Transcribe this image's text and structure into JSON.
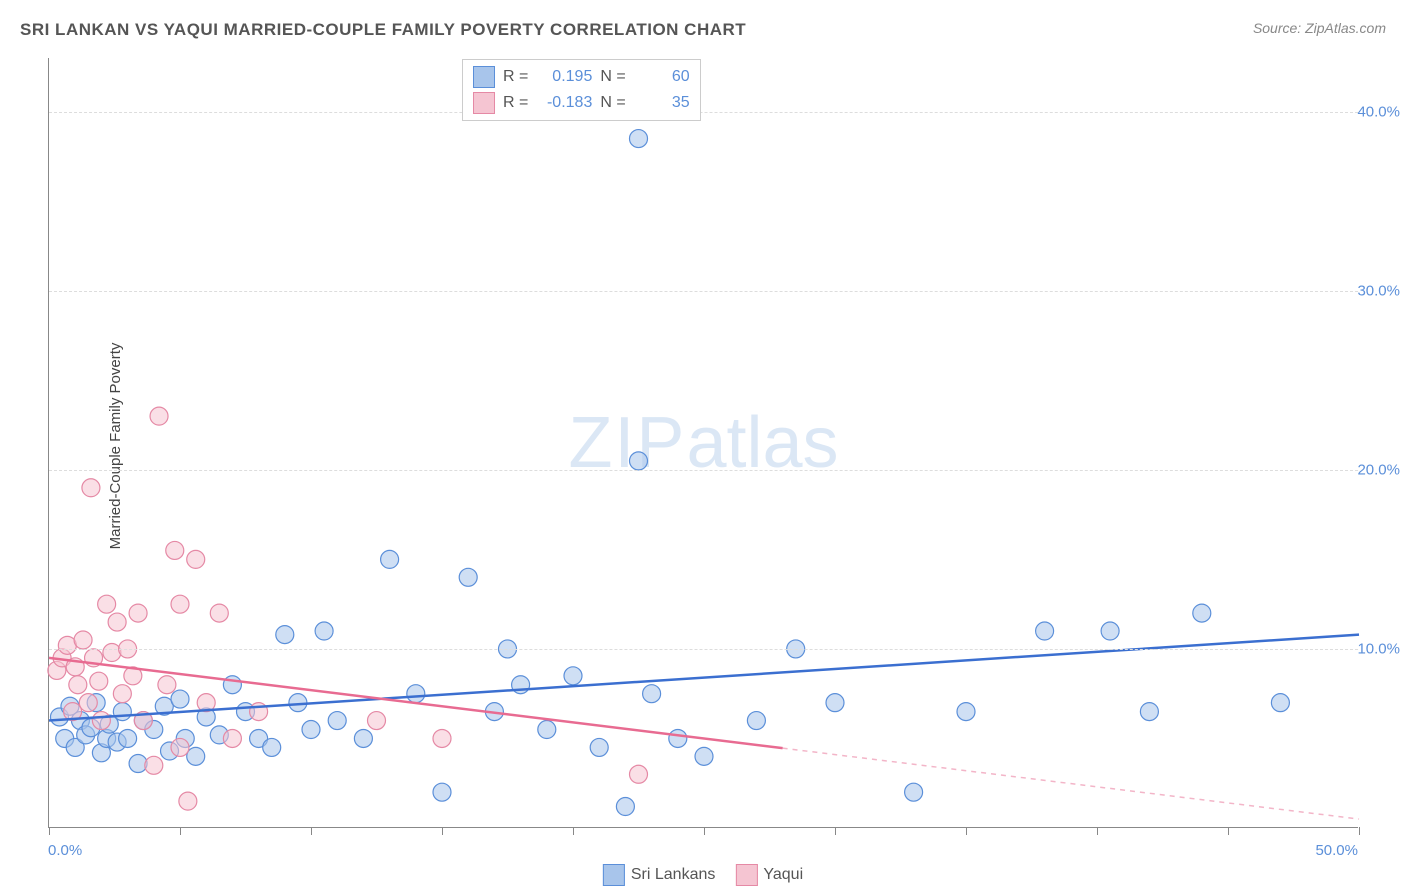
{
  "title": "SRI LANKAN VS YAQUI MARRIED-COUPLE FAMILY POVERTY CORRELATION CHART",
  "source": "Source: ZipAtlas.com",
  "watermark_zip": "ZIP",
  "watermark_atlas": "atlas",
  "y_axis_label": "Married-Couple Family Poverty",
  "chart": {
    "type": "scatter",
    "xlim": [
      0,
      50
    ],
    "ylim": [
      0,
      43
    ],
    "x_ticks": [
      0,
      5,
      10,
      15,
      20,
      25,
      30,
      35,
      40,
      45,
      50
    ],
    "y_gridlines": [
      10,
      20,
      30,
      40
    ],
    "x_labels": [
      {
        "x": 0,
        "text": "0.0%",
        "anchor": "start"
      },
      {
        "x": 50,
        "text": "50.0%",
        "anchor": "end"
      }
    ],
    "y_labels": [
      {
        "y": 10,
        "text": "10.0%"
      },
      {
        "y": 20,
        "text": "20.0%"
      },
      {
        "y": 30,
        "text": "30.0%"
      },
      {
        "y": 40,
        "text": "40.0%"
      }
    ],
    "background_color": "#ffffff",
    "grid_color": "#dddddd",
    "axis_color": "#888888",
    "marker_radius": 9,
    "marker_opacity": 0.55,
    "line_width": 2.5,
    "series": [
      {
        "name": "Sri Lankans",
        "label": "Sri Lankans",
        "fill_color": "#a8c5eb",
        "stroke_color": "#5b8fd9",
        "line_color": "#3b6fd0",
        "R": "0.195",
        "N": "60",
        "trend": {
          "x1": 0,
          "y1": 6.0,
          "x2": 50,
          "y2": 10.8,
          "solid_to_x": 50
        },
        "points": [
          [
            0.4,
            6.2
          ],
          [
            0.6,
            5.0
          ],
          [
            0.8,
            6.8
          ],
          [
            1.0,
            4.5
          ],
          [
            1.2,
            6.0
          ],
          [
            1.4,
            5.2
          ],
          [
            1.6,
            5.6
          ],
          [
            1.8,
            7.0
          ],
          [
            2.0,
            4.2
          ],
          [
            2.2,
            5.0
          ],
          [
            2.3,
            5.8
          ],
          [
            2.6,
            4.8
          ],
          [
            2.8,
            6.5
          ],
          [
            3.0,
            5.0
          ],
          [
            3.4,
            3.6
          ],
          [
            3.6,
            6.0
          ],
          [
            4.0,
            5.5
          ],
          [
            4.4,
            6.8
          ],
          [
            4.6,
            4.3
          ],
          [
            5.0,
            7.2
          ],
          [
            5.2,
            5.0
          ],
          [
            5.6,
            4.0
          ],
          [
            6.0,
            6.2
          ],
          [
            6.5,
            5.2
          ],
          [
            7.0,
            8.0
          ],
          [
            7.5,
            6.5
          ],
          [
            8.0,
            5.0
          ],
          [
            8.5,
            4.5
          ],
          [
            9.0,
            10.8
          ],
          [
            9.5,
            7.0
          ],
          [
            10.0,
            5.5
          ],
          [
            10.5,
            11.0
          ],
          [
            11.0,
            6.0
          ],
          [
            12.0,
            5.0
          ],
          [
            13.0,
            15.0
          ],
          [
            14.0,
            7.5
          ],
          [
            15.0,
            2.0
          ],
          [
            16.0,
            14.0
          ],
          [
            17.0,
            6.5
          ],
          [
            17.5,
            10.0
          ],
          [
            18.0,
            8.0
          ],
          [
            19.0,
            5.5
          ],
          [
            20.0,
            8.5
          ],
          [
            21.0,
            4.5
          ],
          [
            22.0,
            1.2
          ],
          [
            22.5,
            20.5
          ],
          [
            22.5,
            38.5
          ],
          [
            23.0,
            7.5
          ],
          [
            24.0,
            5.0
          ],
          [
            25.0,
            4.0
          ],
          [
            27.0,
            6.0
          ],
          [
            28.5,
            10.0
          ],
          [
            30.0,
            7.0
          ],
          [
            33.0,
            2.0
          ],
          [
            35.0,
            6.5
          ],
          [
            38.0,
            11.0
          ],
          [
            40.5,
            11.0
          ],
          [
            42.0,
            6.5
          ],
          [
            44.0,
            12.0
          ],
          [
            47.0,
            7.0
          ]
        ]
      },
      {
        "name": "Yaqui",
        "label": "Yaqui",
        "fill_color": "#f5c5d2",
        "stroke_color": "#e589a5",
        "line_color": "#e86b91",
        "R": "-0.183",
        "N": "35",
        "trend": {
          "x1": 0,
          "y1": 9.5,
          "x2": 50,
          "y2": 0.5,
          "solid_to_x": 28
        },
        "points": [
          [
            0.3,
            8.8
          ],
          [
            0.5,
            9.5
          ],
          [
            0.7,
            10.2
          ],
          [
            0.9,
            6.5
          ],
          [
            1.0,
            9.0
          ],
          [
            1.1,
            8.0
          ],
          [
            1.3,
            10.5
          ],
          [
            1.5,
            7.0
          ],
          [
            1.6,
            19.0
          ],
          [
            1.7,
            9.5
          ],
          [
            1.9,
            8.2
          ],
          [
            2.0,
            6.0
          ],
          [
            2.2,
            12.5
          ],
          [
            2.4,
            9.8
          ],
          [
            2.6,
            11.5
          ],
          [
            2.8,
            7.5
          ],
          [
            3.0,
            10.0
          ],
          [
            3.2,
            8.5
          ],
          [
            3.4,
            12.0
          ],
          [
            3.6,
            6.0
          ],
          [
            4.0,
            3.5
          ],
          [
            4.2,
            23.0
          ],
          [
            4.5,
            8.0
          ],
          [
            4.8,
            15.5
          ],
          [
            5.0,
            4.5
          ],
          [
            5.0,
            12.5
          ],
          [
            5.3,
            1.5
          ],
          [
            5.6,
            15.0
          ],
          [
            6.0,
            7.0
          ],
          [
            6.5,
            12.0
          ],
          [
            7.0,
            5.0
          ],
          [
            8.0,
            6.5
          ],
          [
            12.5,
            6.0
          ],
          [
            15.0,
            5.0
          ],
          [
            22.5,
            3.0
          ]
        ]
      }
    ]
  },
  "stats_box": {
    "r_label": "R  =",
    "n_label": "N  ="
  },
  "legend": {
    "items": [
      "Sri Lankans",
      "Yaqui"
    ]
  }
}
